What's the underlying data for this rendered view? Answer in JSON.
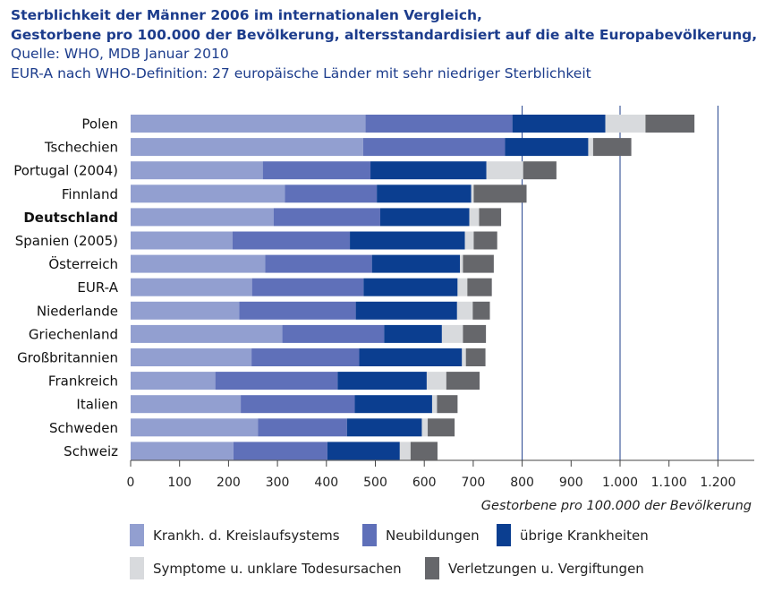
{
  "header": {
    "title_line1": "Sterblichkeit der Männer 2006 im internationalen Vergleich,",
    "title_line2": "Gestorbene pro 100.000 der Bevölkerung, altersstandardisiert auf die alte Europabevölkerung,",
    "source_line": "Quelle: WHO, MDB Januar 2010",
    "note_line": "EUR-A nach WHO-Definition: 27 europäische Länder mit sehr niedriger Sterblichkeit"
  },
  "chart_data": {
    "type": "bar",
    "orientation": "horizontal",
    "stacked": true,
    "categories": [
      "Polen",
      "Tschechien",
      "Portugal (2004)",
      "Finnland",
      "Deutschland",
      "Spanien (2005)",
      "Österreich",
      "EUR-A",
      "Niederlande",
      "Griechenland",
      "Großbritannien",
      "Frankreich",
      "Italien",
      "Schweden",
      "Schweiz"
    ],
    "highlight_category": "Deutschland",
    "series": [
      {
        "name": "Krankh. d. Kreislaufsystems",
        "color": "#929fd0",
        "values": [
          480,
          475,
          270,
          315,
          292,
          208,
          275,
          248,
          222,
          310,
          247,
          173,
          225,
          260,
          210
        ]
      },
      {
        "name": "Neubildungen",
        "color": "#5f70b9",
        "values": [
          300,
          290,
          220,
          188,
          218,
          240,
          218,
          228,
          238,
          208,
          220,
          250,
          233,
          182,
          192
        ]
      },
      {
        "name": "übrige Krankheiten",
        "color": "#0b3e90",
        "values": [
          190,
          170,
          237,
          193,
          182,
          235,
          180,
          192,
          207,
          118,
          210,
          182,
          158,
          153,
          148
        ]
      },
      {
        "name": "Symptome u. unklare Todesursachen",
        "color": "#d8dadd",
        "values": [
          82,
          10,
          75,
          5,
          20,
          18,
          6,
          20,
          32,
          43,
          8,
          40,
          10,
          12,
          22
        ]
      },
      {
        "name": "Verletzungen u. Vergiftungen",
        "color": "#66676b",
        "values": [
          100,
          78,
          68,
          108,
          45,
          48,
          63,
          50,
          35,
          47,
          40,
          68,
          42,
          55,
          55
        ]
      }
    ],
    "xlim": [
      0,
      1280
    ],
    "xticks": [
      0,
      100,
      200,
      300,
      400,
      500,
      600,
      700,
      800,
      900,
      1000,
      1100,
      1200
    ],
    "xtick_labels": [
      "0",
      "100",
      "200",
      "300",
      "400",
      "500",
      "600",
      "700",
      "800",
      "900",
      "1.000",
      "1.100",
      "1.200"
    ],
    "gridlines": [
      800,
      1000,
      1200
    ],
    "xlabel": "Gestorbene pro 100.000 der Bevölkerung",
    "ylabel": "",
    "legend": "bottom"
  }
}
